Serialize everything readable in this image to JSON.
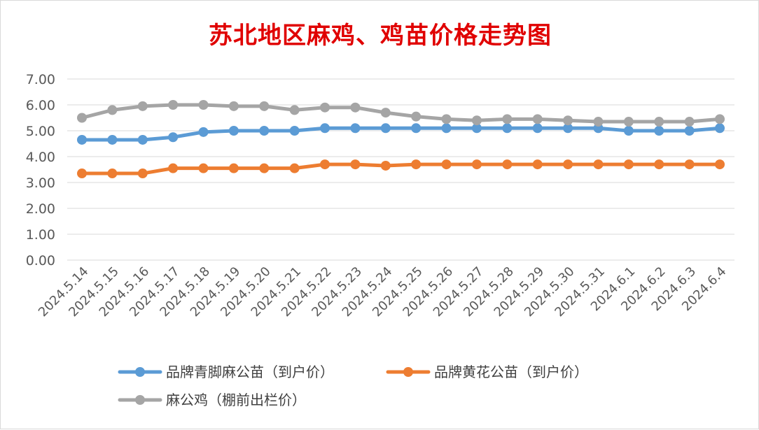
{
  "chart_data": {
    "type": "line",
    "title": "苏北地区麻鸡、鸡苗价格走势图",
    "categories": [
      "2024.5.14",
      "2024.5.15",
      "2024.5.16",
      "2024.5.17",
      "2024.5.18",
      "2024.5.19",
      "2024.5.20",
      "2024.5.21",
      "2024.5.22",
      "2024.5.23",
      "2024.5.24",
      "2024.5.25",
      "2024.5.26",
      "2024.5.27",
      "2024.5.28",
      "2024.5.29",
      "2024.5.30",
      "2024.5.31",
      "2024.6.1",
      "2024.6.2",
      "2024.6.3",
      "2024.6.4"
    ],
    "y_ticks": [
      "0.00",
      "1.00",
      "2.00",
      "3.00",
      "4.00",
      "5.00",
      "6.00",
      "7.00"
    ],
    "ylim": [
      0,
      7
    ],
    "grid": true,
    "legend_position": "bottom",
    "series": [
      {
        "name": "品牌青脚麻公苗（到户价）",
        "color": "#5b9bd5",
        "values": [
          4.65,
          4.65,
          4.65,
          4.75,
          4.95,
          5.0,
          5.0,
          5.0,
          5.1,
          5.1,
          5.1,
          5.1,
          5.1,
          5.1,
          5.1,
          5.1,
          5.1,
          5.1,
          5.0,
          5.0,
          5.0,
          5.1
        ]
      },
      {
        "name": "品牌黄花公苗（到户价）",
        "color": "#ed7d31",
        "values": [
          3.35,
          3.35,
          3.35,
          3.55,
          3.55,
          3.55,
          3.55,
          3.55,
          3.7,
          3.7,
          3.65,
          3.7,
          3.7,
          3.7,
          3.7,
          3.7,
          3.7,
          3.7,
          3.7,
          3.7,
          3.7,
          3.7
        ]
      },
      {
        "name": "麻公鸡（棚前出栏价）",
        "color": "#a5a5a5",
        "values": [
          5.5,
          5.8,
          5.95,
          6.0,
          6.0,
          5.95,
          5.95,
          5.8,
          5.9,
          5.9,
          5.7,
          5.55,
          5.45,
          5.4,
          5.45,
          5.45,
          5.4,
          5.35,
          5.35,
          5.35,
          5.35,
          5.45
        ]
      }
    ]
  }
}
